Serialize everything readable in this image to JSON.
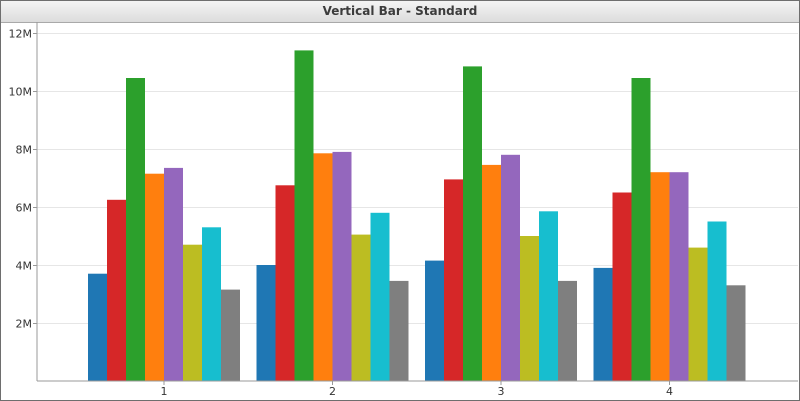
{
  "chart_data": {
    "type": "bar",
    "title": "Vertical Bar - Standard",
    "categories": [
      "1",
      "2",
      "3",
      "4"
    ],
    "series": [
      {
        "color": "#1f77b4",
        "values": [
          3.7,
          4.0,
          4.15,
          3.9
        ]
      },
      {
        "color": "#d62728",
        "values": [
          6.25,
          6.75,
          6.95,
          6.5
        ]
      },
      {
        "color": "#2ca02c",
        "values": [
          10.45,
          11.4,
          10.85,
          10.45
        ]
      },
      {
        "color": "#ff7f0e",
        "values": [
          7.15,
          7.85,
          7.45,
          7.2
        ]
      },
      {
        "color": "#9467bd",
        "values": [
          7.35,
          7.9,
          7.8,
          7.2
        ]
      },
      {
        "color": "#bcbd22",
        "values": [
          4.7,
          5.05,
          5.0,
          4.6
        ]
      },
      {
        "color": "#17becf",
        "values": [
          5.3,
          5.8,
          5.85,
          5.5
        ]
      },
      {
        "color": "#7f7f7f",
        "values": [
          3.15,
          3.45,
          3.45,
          3.3
        ]
      }
    ],
    "y_unit": "M",
    "ylim": [
      0,
      12
    ],
    "yticks": [
      {
        "value": 2,
        "label": "2M"
      },
      {
        "value": 4,
        "label": "4M"
      },
      {
        "value": 6,
        "label": "6M"
      },
      {
        "value": 8,
        "label": "8M"
      },
      {
        "value": 10,
        "label": "10M"
      },
      {
        "value": 12,
        "label": "12M"
      }
    ],
    "grid": true,
    "legend": "none"
  }
}
